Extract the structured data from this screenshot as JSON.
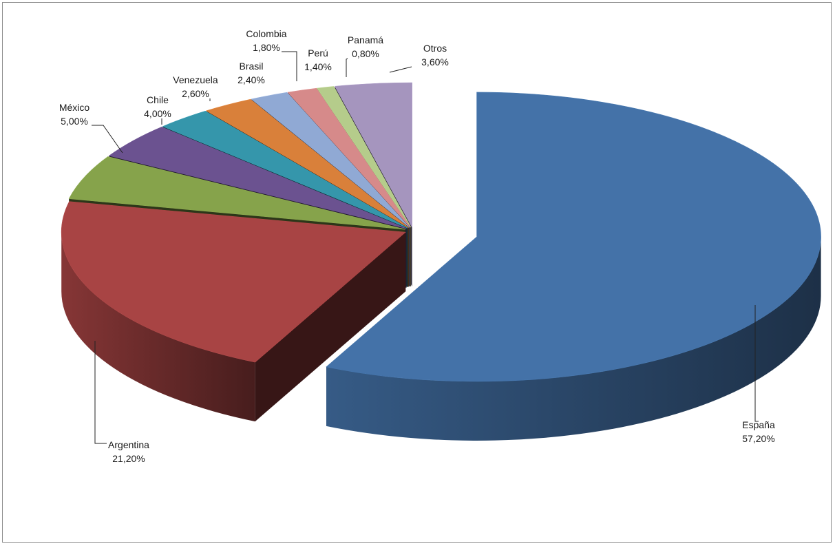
{
  "chart_data": {
    "type": "pie",
    "variant": "3d-exploded",
    "slices": [
      {
        "name": "España",
        "value": 57.2,
        "label": "57,20%",
        "color": "#4472A8"
      },
      {
        "name": "Argentina",
        "value": 21.2,
        "label": "21,20%",
        "color": "#A84444"
      },
      {
        "name": "México",
        "value": 5.0,
        "label": "5,00%",
        "color": "#86A34B"
      },
      {
        "name": "Chile",
        "value": 4.0,
        "label": "4,00%",
        "color": "#6B5290"
      },
      {
        "name": "Venezuela",
        "value": 2.6,
        "label": "2,60%",
        "color": "#3596AB"
      },
      {
        "name": "Brasil",
        "value": 2.4,
        "label": "2,40%",
        "color": "#D9803A"
      },
      {
        "name": "Colombia",
        "value": 1.8,
        "label": "1,80%",
        "color": "#90A9D4"
      },
      {
        "name": "Perú",
        "value": 1.4,
        "label": "1,40%",
        "color": "#D68A8A"
      },
      {
        "name": "Panamá",
        "value": 0.8,
        "label": "0,80%",
        "color": "#B5CC8B"
      },
      {
        "name": "Otros",
        "value": 3.6,
        "label": "3,60%",
        "color": "#A595BE"
      }
    ],
    "legend": "none",
    "data_labels": "category-name-and-percent"
  }
}
